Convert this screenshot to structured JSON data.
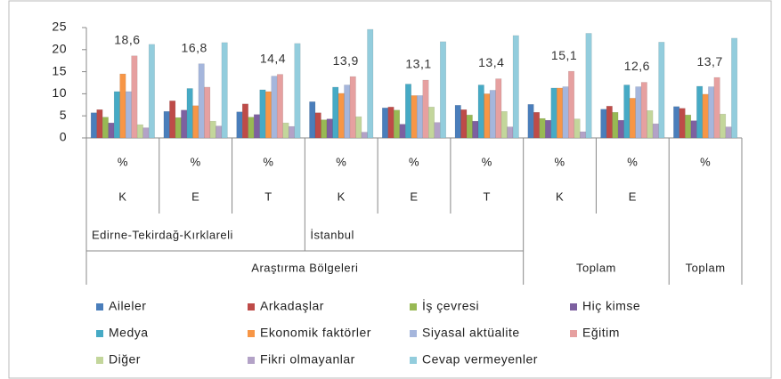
{
  "chart_data": {
    "type": "bar",
    "categories": [
      "%",
      "%",
      "%",
      "%",
      "%",
      "%",
      "%",
      "%",
      "%"
    ],
    "categories_level2": [
      "K",
      "E",
      "T",
      "K",
      "E",
      "T",
      "K",
      "E",
      null
    ],
    "categories_level3": [
      {
        "label": "Edirne-Tekirdağ-Kırklareli",
        "span": 3
      },
      {
        "label": "İstanbul",
        "span": 3
      },
      {
        "label": null,
        "span": 3
      }
    ],
    "categories_level4": [
      {
        "label": "Araştırma Bölgeleri",
        "span": 6
      },
      {
        "label": "Toplam",
        "span": 2
      },
      {
        "label": "Toplam",
        "span": 1
      }
    ],
    "ylim": [
      0,
      25
    ],
    "yticks": [
      0,
      5,
      10,
      15,
      20,
      25
    ],
    "grid": false,
    "series": [
      {
        "name": "Aileler",
        "color": "#4a7ebb",
        "values": [
          5.7,
          6.0,
          5.9,
          8.2,
          6.8,
          7.4,
          7.6,
          6.5,
          7.1
        ]
      },
      {
        "name": "Arkadaşlar",
        "color": "#be4b48",
        "values": [
          6.4,
          8.4,
          7.7,
          5.7,
          7.0,
          6.4,
          5.8,
          7.2,
          6.7
        ]
      },
      {
        "name": "İş çevresi",
        "color": "#98b954",
        "values": [
          4.7,
          4.6,
          4.7,
          4.1,
          6.3,
          5.2,
          4.4,
          5.8,
          5.2
        ]
      },
      {
        "name": "Hiç kimse",
        "color": "#7d60a0",
        "values": [
          3.4,
          6.3,
          5.3,
          4.3,
          3.1,
          3.8,
          4.0,
          4.0,
          3.9
        ]
      },
      {
        "name": "Medya",
        "color": "#46aac5",
        "values": [
          10.5,
          11.2,
          10.9,
          11.5,
          12.2,
          12.0,
          11.3,
          12.0,
          11.7
        ]
      },
      {
        "name": "Ekonomik faktörler",
        "color": "#f79646",
        "values": [
          14.5,
          7.3,
          10.5,
          10.1,
          9.6,
          10.0,
          11.3,
          9.0,
          9.9
        ]
      },
      {
        "name": "Siyasal aktüalite",
        "color": "#a5b6dc",
        "values": [
          10.5,
          16.8,
          14.0,
          12.0,
          9.6,
          10.8,
          11.6,
          11.6,
          11.6
        ],
        "value_labels": [
          null,
          "16,8",
          null,
          null,
          null,
          null,
          null,
          null,
          null
        ]
      },
      {
        "name": "Eğitim",
        "color": "#e6a0a0",
        "values": [
          18.6,
          11.5,
          14.4,
          13.9,
          13.1,
          13.4,
          15.1,
          12.6,
          13.7
        ],
        "value_labels": [
          "18,6",
          null,
          "14,4",
          "13,9",
          "13,1",
          "13,4",
          "15,1",
          "12,6",
          "13,7"
        ]
      },
      {
        "name": "Diğer",
        "color": "#c3d69b",
        "values": [
          3.0,
          3.8,
          3.4,
          4.8,
          7.0,
          6.0,
          4.3,
          6.2,
          5.4
        ]
      },
      {
        "name": "Fikri olmayanlar",
        "color": "#b3a2c7",
        "values": [
          2.3,
          2.7,
          2.6,
          1.3,
          3.5,
          2.5,
          1.4,
          3.2,
          2.5
        ]
      },
      {
        "name": "Cevap vermeyenler",
        "color": "#93cddd",
        "values": [
          21.2,
          21.6,
          21.4,
          24.6,
          21.8,
          23.2,
          23.7,
          21.7,
          22.6
        ]
      }
    ]
  }
}
